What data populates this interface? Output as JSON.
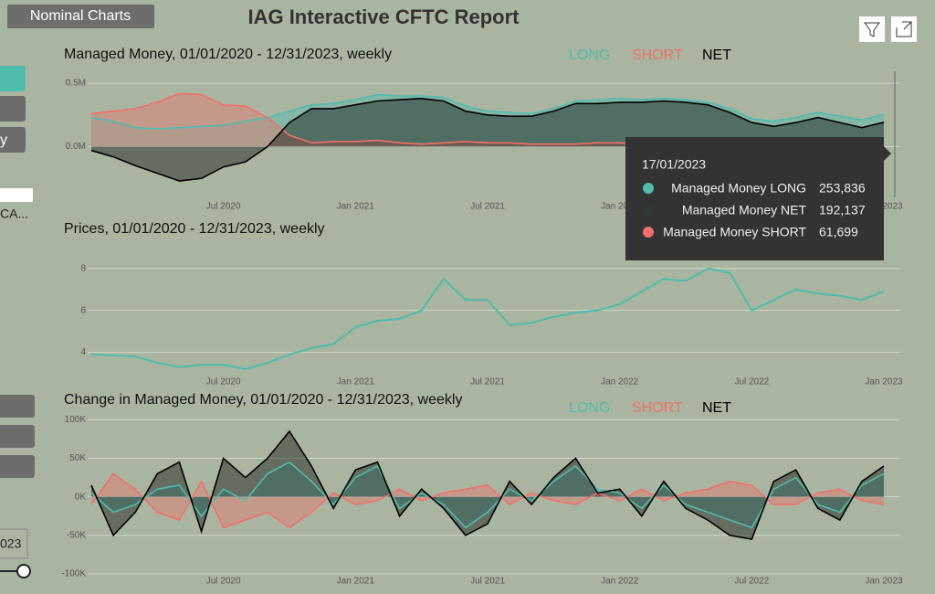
{
  "page": {
    "button": "Nominal Charts",
    "title": "IAG Interactive CFTC Report",
    "sidebar": {
      "label_a": "y",
      "label_b": "CA...",
      "year_box": "023"
    },
    "tooltip": {
      "date": "17/01/2023",
      "items": [
        {
          "label": "Managed Money LONG",
          "value": "253,836"
        },
        {
          "label": "Managed Money NET",
          "value": "192,137"
        },
        {
          "label": "Managed Money SHORT",
          "value": "61,699"
        }
      ]
    }
  },
  "chart_data": [
    {
      "type": "area",
      "title": "Managed Money, 01/01/2020 - 12/31/2023, weekly",
      "x": [
        "2020-01",
        "2020-02",
        "2020-03",
        "2020-04",
        "2020-05",
        "2020-06",
        "2020-07",
        "2020-08",
        "2020-09",
        "2020-10",
        "2020-11",
        "2020-12",
        "2021-01",
        "2021-02",
        "2021-03",
        "2021-04",
        "2021-05",
        "2021-06",
        "2021-07",
        "2021-08",
        "2021-09",
        "2021-10",
        "2021-11",
        "2021-12",
        "2022-01",
        "2022-02",
        "2022-03",
        "2022-04",
        "2022-05",
        "2022-06",
        "2022-07",
        "2022-08",
        "2022-09",
        "2022-10",
        "2022-11",
        "2022-12",
        "2023-01"
      ],
      "series": [
        {
          "name": "LONG",
          "color": "#4fbcae",
          "values": [
            230000,
            200000,
            150000,
            140000,
            150000,
            160000,
            170000,
            200000,
            230000,
            280000,
            330000,
            340000,
            370000,
            410000,
            400000,
            400000,
            390000,
            320000,
            280000,
            270000,
            260000,
            300000,
            360000,
            370000,
            380000,
            370000,
            380000,
            370000,
            350000,
            300000,
            220000,
            200000,
            230000,
            270000,
            240000,
            210000,
            253836
          ]
        },
        {
          "name": "SHORT",
          "color": "#f0716a",
          "values": [
            260000,
            280000,
            300000,
            350000,
            420000,
            410000,
            330000,
            320000,
            230000,
            90000,
            30000,
            40000,
            40000,
            50000,
            30000,
            20000,
            30000,
            40000,
            30000,
            30000,
            20000,
            20000,
            20000,
            30000,
            30000,
            20000,
            20000,
            20000,
            20000,
            30000,
            30000,
            40000,
            40000,
            40000,
            50000,
            60000,
            61699
          ]
        },
        {
          "name": "NET",
          "color": "#000000",
          "values": [
            -30000,
            -80000,
            -150000,
            -210000,
            -270000,
            -250000,
            -160000,
            -120000,
            0,
            190000,
            300000,
            300000,
            330000,
            360000,
            370000,
            380000,
            360000,
            280000,
            250000,
            240000,
            240000,
            280000,
            340000,
            340000,
            350000,
            350000,
            360000,
            350000,
            330000,
            270000,
            190000,
            160000,
            190000,
            230000,
            190000,
            150000,
            192137
          ]
        }
      ],
      "xlim": [
        "2020-01",
        "2023-01"
      ],
      "xticks": [
        {
          "value": "2020-07",
          "label": "Jul 2020"
        },
        {
          "value": "2021-01",
          "label": "Jan 2021"
        },
        {
          "value": "2021-07",
          "label": "Jul 2021"
        },
        {
          "value": "2022-01",
          "label": "Jan 2022"
        },
        {
          "value": "2022-07",
          "label": "Jul 2022"
        },
        {
          "value": "2023-01",
          "label": "Jan 2023"
        }
      ],
      "ylim": [
        -400000,
        580000
      ],
      "yticks": [
        {
          "value": 0,
          "label": "0.0M"
        },
        {
          "value": 500000,
          "label": "0.5M"
        }
      ],
      "grid": true,
      "legend": "top"
    },
    {
      "type": "line",
      "title": "Prices, 01/01/2020 - 12/31/2023, weekly",
      "x": [
        "2020-01",
        "2020-02",
        "2020-03",
        "2020-04",
        "2020-05",
        "2020-06",
        "2020-07",
        "2020-08",
        "2020-09",
        "2020-10",
        "2020-11",
        "2020-12",
        "2021-01",
        "2021-02",
        "2021-03",
        "2021-04",
        "2021-05",
        "2021-06",
        "2021-07",
        "2021-08",
        "2021-09",
        "2021-10",
        "2021-11",
        "2021-12",
        "2022-01",
        "2022-02",
        "2022-03",
        "2022-04",
        "2022-05",
        "2022-06",
        "2022-07",
        "2022-08",
        "2022-09",
        "2022-10",
        "2022-11",
        "2022-12",
        "2023-01"
      ],
      "values": [
        3.9,
        3.85,
        3.8,
        3.5,
        3.3,
        3.4,
        3.4,
        3.2,
        3.5,
        3.9,
        4.2,
        4.4,
        5.2,
        5.5,
        5.6,
        6.0,
        7.5,
        6.5,
        6.5,
        5.3,
        5.4,
        5.7,
        5.9,
        6.0,
        6.3,
        6.9,
        7.5,
        7.4,
        8.0,
        7.8,
        6.0,
        6.5,
        7.0,
        6.8,
        6.7,
        6.5,
        6.9
      ],
      "color": "#4fbcae",
      "xlim": [
        "2020-01",
        "2023-01"
      ],
      "xticks": [
        {
          "value": "2020-07",
          "label": "Jul 2020"
        },
        {
          "value": "2021-01",
          "label": "Jan 2021"
        },
        {
          "value": "2021-07",
          "label": "Jul 2021"
        },
        {
          "value": "2022-01",
          "label": "Jan 2022"
        },
        {
          "value": "2022-07",
          "label": "Jul 2022"
        },
        {
          "value": "2023-01",
          "label": "Jan 2023"
        }
      ],
      "ylim": [
        2.5,
        8.6
      ],
      "yticks": [
        4,
        6,
        8
      ],
      "grid": true
    },
    {
      "type": "area",
      "title": "Change in Managed Money, 01/01/2020 - 12/31/2023, weekly",
      "x": [
        "2020-01",
        "2020-02",
        "2020-03",
        "2020-04",
        "2020-05",
        "2020-06",
        "2020-07",
        "2020-08",
        "2020-09",
        "2020-10",
        "2020-11",
        "2020-12",
        "2021-01",
        "2021-02",
        "2021-03",
        "2021-04",
        "2021-05",
        "2021-06",
        "2021-07",
        "2021-08",
        "2021-09",
        "2021-10",
        "2021-11",
        "2021-12",
        "2022-01",
        "2022-02",
        "2022-03",
        "2022-04",
        "2022-05",
        "2022-06",
        "2022-07",
        "2022-08",
        "2022-09",
        "2022-10",
        "2022-11",
        "2022-12",
        "2023-01"
      ],
      "series": [
        {
          "name": "LONG",
          "color": "#4fbcae",
          "values": [
            5000,
            -20000,
            -10000,
            10000,
            15000,
            -25000,
            10000,
            -5000,
            30000,
            45000,
            20000,
            -10000,
            25000,
            40000,
            -15000,
            5000,
            -10000,
            -40000,
            -20000,
            10000,
            -5000,
            20000,
            40000,
            10000,
            5000,
            -15000,
            15000,
            -10000,
            -20000,
            -30000,
            -40000,
            10000,
            25000,
            -10000,
            -20000,
            15000,
            30000
          ]
        },
        {
          "name": "SHORT",
          "color": "#f0716a",
          "values": [
            -10000,
            30000,
            10000,
            -20000,
            -30000,
            20000,
            -40000,
            -30000,
            -20000,
            -40000,
            -20000,
            5000,
            -10000,
            -5000,
            10000,
            -5000,
            5000,
            10000,
            15000,
            -10000,
            5000,
            -5000,
            -10000,
            5000,
            -5000,
            10000,
            -5000,
            5000,
            10000,
            20000,
            15000,
            -10000,
            -10000,
            5000,
            10000,
            -5000,
            -10000
          ]
        },
        {
          "name": "NET",
          "color": "#000000",
          "values": [
            15000,
            -50000,
            -20000,
            30000,
            45000,
            -45000,
            50000,
            25000,
            50000,
            85000,
            40000,
            -15000,
            35000,
            45000,
            -25000,
            10000,
            -15000,
            -50000,
            -35000,
            20000,
            -10000,
            25000,
            50000,
            5000,
            10000,
            -25000,
            20000,
            -15000,
            -30000,
            -50000,
            -55000,
            20000,
            35000,
            -15000,
            -30000,
            20000,
            40000
          ]
        }
      ],
      "xlim": [
        "2020-01",
        "2023-01"
      ],
      "xticks": [
        {
          "value": "2020-07",
          "label": "Jul 2020"
        },
        {
          "value": "2021-01",
          "label": "Jan 2021"
        },
        {
          "value": "2021-07",
          "label": "Jul 2021"
        },
        {
          "value": "2022-01",
          "label": "Jan 2022"
        },
        {
          "value": "2022-07",
          "label": "Jul 2022"
        },
        {
          "value": "2023-01",
          "label": "Jan 2023"
        }
      ],
      "ylim": [
        -100000,
        104000
      ],
      "yticks": [
        {
          "value": 100000,
          "label": "100K"
        },
        {
          "value": 50000,
          "label": "50K"
        },
        {
          "value": 0,
          "label": "0K"
        },
        {
          "value": -50000,
          "label": "-50K"
        },
        {
          "value": -100000,
          "label": "-100K"
        }
      ],
      "grid": true,
      "legend": "top"
    }
  ]
}
